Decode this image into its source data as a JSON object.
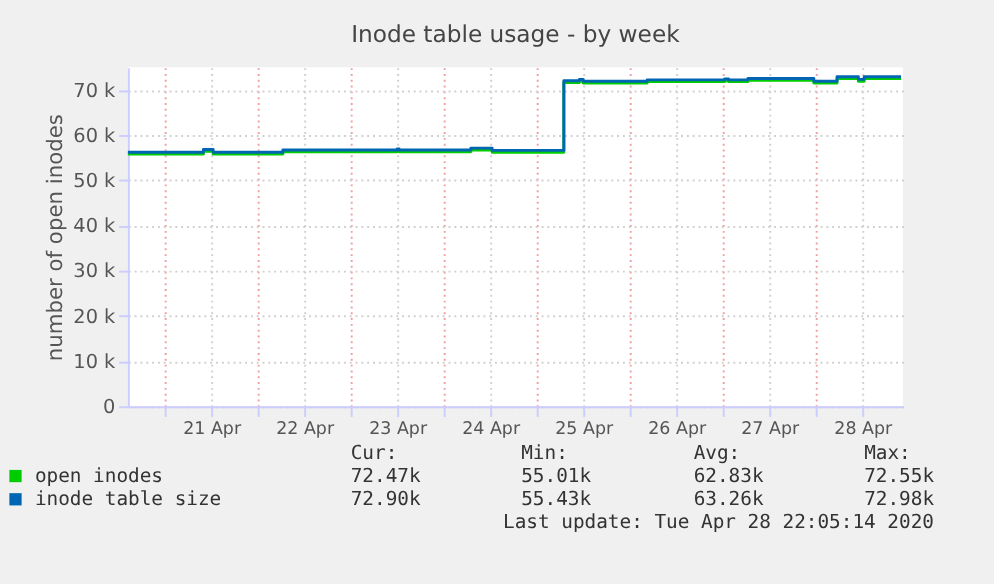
{
  "chart_data": {
    "type": "step",
    "title": "Inode table usage - by week",
    "ylabel": "number of open inodes",
    "xlim": [
      "2020-04-20T14:30",
      "2020-04-28T22:30"
    ],
    "xticks": [
      {
        "value": "2020-04-21T00:00",
        "label": null
      },
      {
        "value": "2020-04-21T12:00",
        "label": "21 Apr"
      },
      {
        "value": "2020-04-22T00:00",
        "label": null
      },
      {
        "value": "2020-04-22T12:00",
        "label": "22 Apr"
      },
      {
        "value": "2020-04-23T00:00",
        "label": null
      },
      {
        "value": "2020-04-23T12:00",
        "label": "23 Apr"
      },
      {
        "value": "2020-04-24T00:00",
        "label": null
      },
      {
        "value": "2020-04-24T12:00",
        "label": "24 Apr"
      },
      {
        "value": "2020-04-25T00:00",
        "label": null
      },
      {
        "value": "2020-04-25T12:00",
        "label": "25 Apr"
      },
      {
        "value": "2020-04-26T00:00",
        "label": null
      },
      {
        "value": "2020-04-26T12:00",
        "label": "26 Apr"
      },
      {
        "value": "2020-04-27T00:00",
        "label": null
      },
      {
        "value": "2020-04-27T12:00",
        "label": "27 Apr"
      },
      {
        "value": "2020-04-28T00:00",
        "label": null
      },
      {
        "value": "2020-04-28T12:00",
        "label": "28 Apr"
      }
    ],
    "ylim": [
      0,
      75000
    ],
    "yticks": [
      {
        "value": 0,
        "label": "0"
      },
      {
        "value": 10000,
        "label": "10 k"
      },
      {
        "value": 20000,
        "label": "20 k"
      },
      {
        "value": 30000,
        "label": "30 k"
      },
      {
        "value": 40000,
        "label": "40 k"
      },
      {
        "value": 50000,
        "label": "50 k"
      },
      {
        "value": 60000,
        "label": "60 k"
      },
      {
        "value": 70000,
        "label": "70 k"
      }
    ],
    "grid": true,
    "legend": "bottom left",
    "x": [
      "2020-04-20T14:30",
      "2020-04-21T10:00",
      "2020-04-21T12:30",
      "2020-04-22T06:30",
      "2020-04-23T12:00",
      "2020-04-23T12:30",
      "2020-04-24T07:00",
      "2020-04-24T12:30",
      "2020-04-25T07:00",
      "2020-04-25T11:00",
      "2020-04-25T12:00",
      "2020-04-26T04:30",
      "2020-04-27T00:30",
      "2020-04-27T01:30",
      "2020-04-27T06:30",
      "2020-04-27T23:30",
      "2020-04-28T05:30",
      "2020-04-28T11:00",
      "2020-04-28T12:30",
      "2020-04-28T22:00"
    ],
    "series": [
      {
        "name": "open inodes",
        "color": "#00cc00",
        "values": [
          55800,
          56400,
          55800,
          56300,
          56500,
          56300,
          56700,
          56200,
          71600,
          71900,
          71500,
          71800,
          72000,
          71800,
          72100,
          71500,
          72500,
          71900,
          72500,
          72500
        ]
      },
      {
        "name": "inode table size",
        "color": "#0066b3",
        "values": [
          56200,
          56800,
          56200,
          56700,
          56900,
          56700,
          57100,
          56600,
          72000,
          72300,
          71900,
          72200,
          72400,
          72200,
          72500,
          71900,
          72900,
          72300,
          72900,
          72900
        ]
      }
    ],
    "annotations": [
      "Cur:",
      "Min:",
      "Avg:",
      "Max:",
      "72.47k",
      "55.01k",
      "62.83k",
      "72.55k",
      "72.90k",
      "55.43k",
      "63.26k",
      "72.98k",
      "Last update: Tue Apr 28 22:05:14 2020"
    ]
  }
}
